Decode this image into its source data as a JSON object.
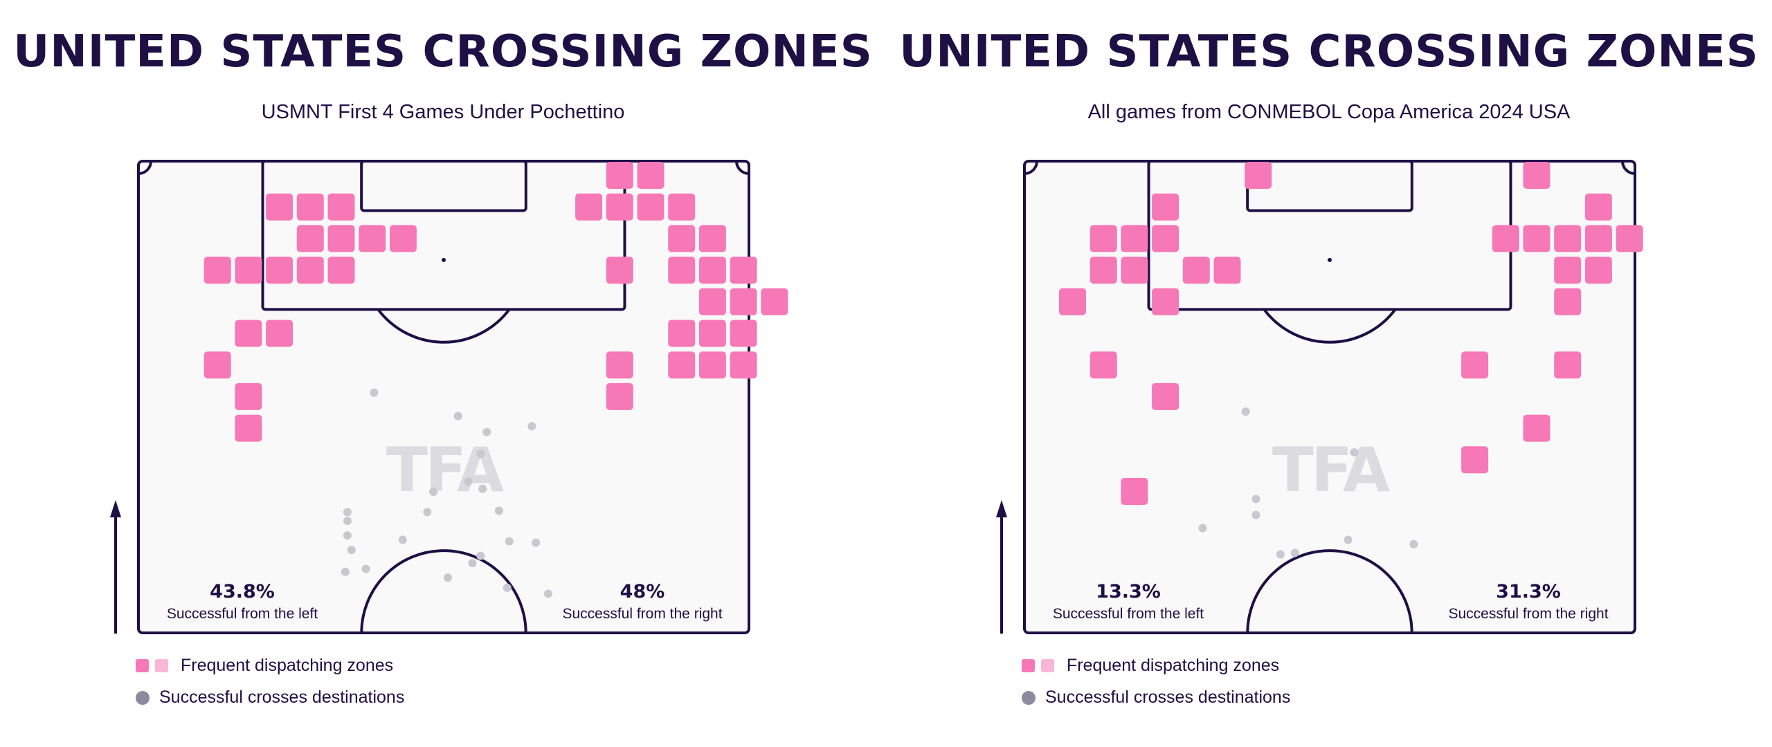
{
  "colors": {
    "navy": "#1e0f45",
    "pink": "#f678b6",
    "pink_light": "#f9b6d6",
    "dot": "#c9c7cf",
    "legend_dot": "#8c8a9c",
    "pitch_bg": "#f9f9f9",
    "watermark": "#dcdbe0"
  },
  "watermark": "TFA",
  "legend": {
    "zones_label": "Frequent dispatching zones",
    "crosses_label": "Successful crosses destinations"
  },
  "chart_data": [
    {
      "type": "heatmap",
      "title": "UNITED STATES CROSSING ZONES",
      "subtitle": "USMNT First 4 Games Under Pochettino",
      "stats": {
        "left": {
          "value": "43.8%",
          "label": "Successful from the left"
        },
        "right": {
          "value": "48%",
          "label": "Successful from the right"
        }
      },
      "zones": [
        [
          14,
          0
        ],
        [
          15,
          0
        ],
        [
          3,
          1
        ],
        [
          4,
          1
        ],
        [
          5,
          1
        ],
        [
          13,
          1
        ],
        [
          14,
          1
        ],
        [
          15,
          1
        ],
        [
          16,
          1
        ],
        [
          4,
          2
        ],
        [
          5,
          2
        ],
        [
          6,
          2
        ],
        [
          7,
          2
        ],
        [
          16,
          2
        ],
        [
          17,
          2
        ],
        [
          1,
          3
        ],
        [
          2,
          3
        ],
        [
          3,
          3
        ],
        [
          4,
          3
        ],
        [
          5,
          3
        ],
        [
          14,
          3
        ],
        [
          16,
          3
        ],
        [
          17,
          3
        ],
        [
          18,
          3
        ],
        [
          17,
          4
        ],
        [
          18,
          4
        ],
        [
          19,
          4
        ],
        [
          2,
          5
        ],
        [
          3,
          5
        ],
        [
          16,
          5
        ],
        [
          17,
          5
        ],
        [
          18,
          5
        ],
        [
          1,
          6
        ],
        [
          14,
          6
        ],
        [
          16,
          6
        ],
        [
          17,
          6
        ],
        [
          18,
          6
        ],
        [
          2,
          7
        ],
        [
          14,
          7
        ],
        [
          2,
          8
        ]
      ],
      "cross_destinations": [
        [
          57.5,
          79.5
        ],
        [
          78.0,
          87.5
        ],
        [
          96.0,
          91.0
        ],
        [
          85.0,
          93.0
        ],
        [
          83.5,
          100.5
        ],
        [
          80.5,
          110.0
        ],
        [
          84.0,
          112.5
        ],
        [
          72.0,
          113.5
        ],
        [
          70.5,
          120.5
        ],
        [
          51.0,
          120.5
        ],
        [
          88.0,
          120.0
        ],
        [
          51.0,
          123.5
        ],
        [
          51.0,
          128.5
        ],
        [
          83.5,
          135.5
        ],
        [
          64.5,
          130.0
        ],
        [
          90.5,
          130.5
        ],
        [
          97.0,
          131.0
        ],
        [
          52.0,
          133.5
        ],
        [
          81.5,
          138.0
        ],
        [
          55.5,
          140.0
        ],
        [
          50.5,
          141.0
        ],
        [
          75.5,
          143.0
        ],
        [
          90.0,
          146.5
        ],
        [
          100.0,
          148.5
        ]
      ]
    },
    {
      "type": "heatmap",
      "title": "UNITED STATES CROSSING ZONES",
      "subtitle": "All games from CONMEBOL Copa America 2024 USA",
      "stats": {
        "left": {
          "value": "13.3%",
          "label": "Successful from the left"
        },
        "right": {
          "value": "31.3%",
          "label": "Successful from the right"
        }
      },
      "zones": [
        [
          6,
          0
        ],
        [
          15,
          0
        ],
        [
          3,
          1
        ],
        [
          17,
          1
        ],
        [
          1,
          2
        ],
        [
          2,
          2
        ],
        [
          3,
          2
        ],
        [
          14,
          2
        ],
        [
          15,
          2
        ],
        [
          16,
          2
        ],
        [
          17,
          2
        ],
        [
          18,
          2
        ],
        [
          1,
          3
        ],
        [
          2,
          3
        ],
        [
          4,
          3
        ],
        [
          5,
          3
        ],
        [
          16,
          3
        ],
        [
          17,
          3
        ],
        [
          0,
          4
        ],
        [
          3,
          4
        ],
        [
          16,
          4
        ],
        [
          1,
          6
        ],
        [
          13,
          6
        ],
        [
          16,
          6
        ],
        [
          3,
          7
        ],
        [
          15,
          8
        ],
        [
          13,
          9
        ],
        [
          2,
          10
        ]
      ],
      "cross_destinations": [
        [
          54.0,
          86.0
        ],
        [
          80.5,
          100.0
        ],
        [
          56.5,
          116.0
        ],
        [
          43.5,
          126.0
        ],
        [
          56.5,
          121.5
        ],
        [
          62.5,
          135.0
        ],
        [
          79.0,
          130.0
        ],
        [
          66.0,
          134.5
        ],
        [
          95.0,
          131.5
        ]
      ]
    }
  ]
}
